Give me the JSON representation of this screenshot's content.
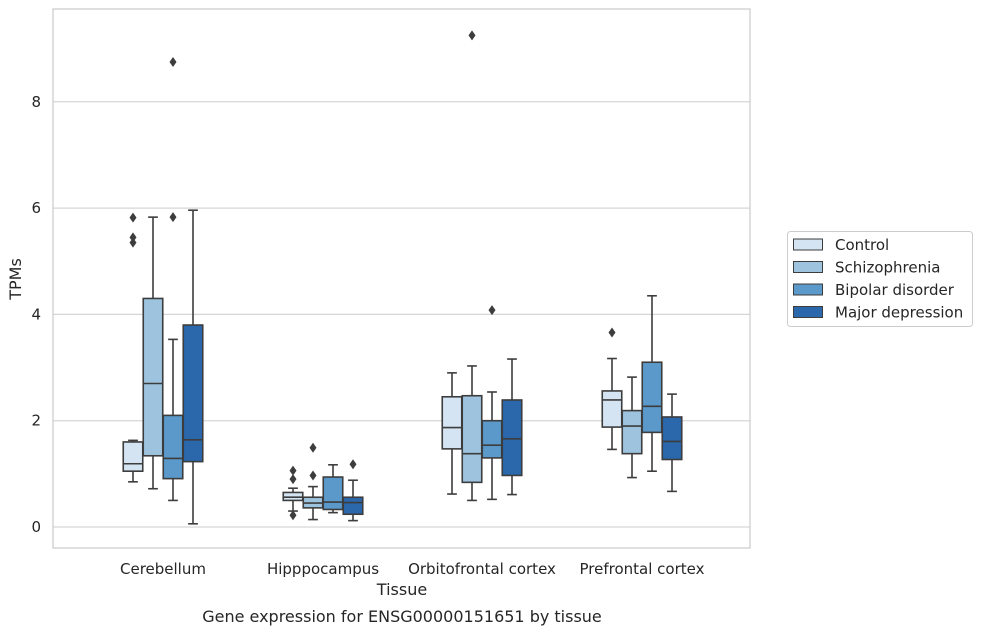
{
  "chart_data": {
    "type": "box",
    "title": "",
    "caption": "Gene expression for ENSG00000151651 by tissue",
    "xlabel": "Tissue",
    "ylabel": "TPMs",
    "ylim": [
      -0.4,
      9.8
    ],
    "yticks": [
      0,
      2,
      4,
      6,
      8
    ],
    "grid": "horizontal",
    "legend_position": "right",
    "categories": [
      "Cerebellum",
      "Hipppocampus",
      "Orbitofrontal cortex",
      "Prefrontal cortex"
    ],
    "series": [
      {
        "name": "Control",
        "color": "#d4e4f3",
        "boxes": [
          {
            "whislo": 0.85,
            "q1": 1.05,
            "med": 1.19,
            "q3": 1.6,
            "whishi": 1.63,
            "fliers": [
              5.35,
              5.45,
              5.82
            ]
          },
          {
            "whislo": 0.3,
            "q1": 0.5,
            "med": 0.56,
            "q3": 0.65,
            "whishi": 0.73,
            "fliers": [
              0.22,
              0.9,
              1.06
            ]
          },
          {
            "whislo": 0.62,
            "q1": 1.47,
            "med": 1.87,
            "q3": 2.45,
            "whishi": 2.9,
            "fliers": []
          },
          {
            "whislo": 1.46,
            "q1": 1.88,
            "med": 2.39,
            "q3": 2.56,
            "whishi": 3.17,
            "fliers": [
              3.66
            ]
          }
        ]
      },
      {
        "name": "Schizophrenia",
        "color": "#9dc3de",
        "boxes": [
          {
            "whislo": 0.72,
            "q1": 1.34,
            "med": 2.7,
            "q3": 4.3,
            "whishi": 5.83,
            "fliers": []
          },
          {
            "whislo": 0.14,
            "q1": 0.36,
            "med": 0.45,
            "q3": 0.56,
            "whishi": 0.76,
            "fliers": [
              0.97,
              1.49
            ]
          },
          {
            "whislo": 0.5,
            "q1": 0.84,
            "med": 1.38,
            "q3": 2.47,
            "whishi": 3.03,
            "fliers": [
              9.25
            ]
          },
          {
            "whislo": 0.93,
            "q1": 1.38,
            "med": 1.9,
            "q3": 2.19,
            "whishi": 2.82,
            "fliers": []
          }
        ]
      },
      {
        "name": "Bipolar disorder",
        "color": "#5a99c9",
        "boxes": [
          {
            "whislo": 0.5,
            "q1": 0.91,
            "med": 1.29,
            "q3": 2.1,
            "whishi": 3.53,
            "fliers": [
              5.83,
              8.75
            ]
          },
          {
            "whislo": 0.27,
            "q1": 0.33,
            "med": 0.47,
            "q3": 0.94,
            "whishi": 1.17,
            "fliers": []
          },
          {
            "whislo": 0.52,
            "q1": 1.3,
            "med": 1.54,
            "q3": 2.0,
            "whishi": 2.54,
            "fliers": [
              4.08
            ]
          },
          {
            "whislo": 1.05,
            "q1": 1.78,
            "med": 2.27,
            "q3": 3.1,
            "whishi": 4.35,
            "fliers": []
          }
        ]
      },
      {
        "name": "Major depression",
        "color": "#2a67ab",
        "boxes": [
          {
            "whislo": 0.06,
            "q1": 1.23,
            "med": 1.64,
            "q3": 3.8,
            "whishi": 5.96,
            "fliers": []
          },
          {
            "whislo": 0.12,
            "q1": 0.24,
            "med": 0.46,
            "q3": 0.56,
            "whishi": 0.88,
            "fliers": [
              1.18
            ]
          },
          {
            "whislo": 0.61,
            "q1": 0.97,
            "med": 1.66,
            "q3": 2.39,
            "whishi": 3.16,
            "fliers": []
          },
          {
            "whislo": 0.67,
            "q1": 1.27,
            "med": 1.61,
            "q3": 2.07,
            "whishi": 2.5,
            "fliers": []
          }
        ]
      }
    ]
  }
}
